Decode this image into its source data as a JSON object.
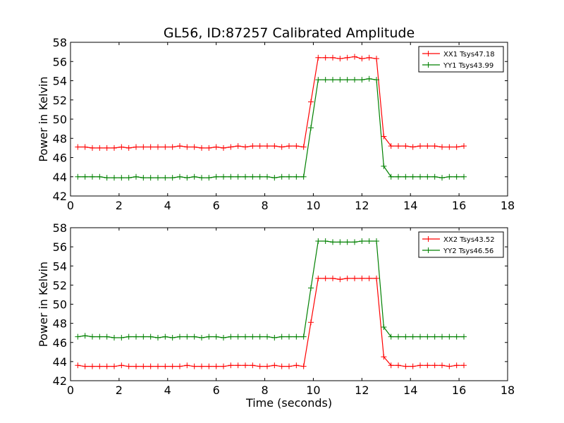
{
  "title": "GL56, ID:87257 Calibrated Amplitude",
  "chart_data": [
    {
      "type": "line",
      "title": "GL56, ID:87257 Calibrated Amplitude",
      "xlabel": "",
      "ylabel": "Power in Kelvin",
      "xlim": [
        0,
        18
      ],
      "ylim": [
        42,
        58
      ],
      "xticks": [
        "0",
        "2",
        "4",
        "6",
        "8",
        "10",
        "12",
        "14",
        "16",
        "18"
      ],
      "yticks": [
        "42",
        "44",
        "46",
        "48",
        "50",
        "52",
        "54",
        "56",
        "58"
      ],
      "grid": false,
      "legend_position": "top-right",
      "x": [
        0.3,
        0.6,
        0.9,
        1.2,
        1.5,
        1.8,
        2.1,
        2.4,
        2.7,
        3.0,
        3.3,
        3.6,
        3.9,
        4.2,
        4.5,
        4.8,
        5.1,
        5.4,
        5.7,
        6.0,
        6.3,
        6.6,
        6.9,
        7.2,
        7.5,
        7.8,
        8.1,
        8.4,
        8.7,
        9.0,
        9.3,
        9.6,
        9.9,
        10.2,
        10.5,
        10.8,
        11.1,
        11.4,
        11.7,
        12.0,
        12.3,
        12.6,
        12.9,
        13.2,
        13.5,
        13.8,
        14.1,
        14.4,
        14.7,
        15.0,
        15.3,
        15.6,
        15.9,
        16.2
      ],
      "series": [
        {
          "name": "XX1 Tsys47.18",
          "color": "#ff0000",
          "values": [
            47.1,
            47.1,
            47.0,
            47.0,
            47.0,
            47.0,
            47.1,
            47.0,
            47.1,
            47.1,
            47.1,
            47.1,
            47.1,
            47.1,
            47.2,
            47.1,
            47.1,
            47.0,
            47.0,
            47.1,
            47.0,
            47.1,
            47.2,
            47.1,
            47.2,
            47.2,
            47.2,
            47.2,
            47.1,
            47.2,
            47.2,
            47.1,
            51.8,
            56.4,
            56.4,
            56.4,
            56.3,
            56.4,
            56.5,
            56.3,
            56.4,
            56.3,
            48.2,
            47.2,
            47.2,
            47.2,
            47.1,
            47.2,
            47.2,
            47.2,
            47.1,
            47.1,
            47.1,
            47.2
          ]
        },
        {
          "name": "YY1 Tsys43.99",
          "color": "#008000",
          "values": [
            44.0,
            44.0,
            44.0,
            44.0,
            43.9,
            43.9,
            43.9,
            43.9,
            44.0,
            43.9,
            43.9,
            43.9,
            43.9,
            43.9,
            44.0,
            43.9,
            44.0,
            43.9,
            43.9,
            44.0,
            44.0,
            44.0,
            44.0,
            44.0,
            44.0,
            44.0,
            44.0,
            43.9,
            44.0,
            44.0,
            44.0,
            44.0,
            49.1,
            54.1,
            54.1,
            54.1,
            54.1,
            54.1,
            54.1,
            54.1,
            54.2,
            54.1,
            45.1,
            44.0,
            44.0,
            44.0,
            44.0,
            44.0,
            44.0,
            44.0,
            43.9,
            44.0,
            44.0,
            44.0
          ]
        }
      ]
    },
    {
      "type": "line",
      "title": "",
      "xlabel": "Time (seconds)",
      "ylabel": "Power in Kelvin",
      "xlim": [
        0,
        18
      ],
      "ylim": [
        42,
        58
      ],
      "xticks": [
        "0",
        "2",
        "4",
        "6",
        "8",
        "10",
        "12",
        "14",
        "16",
        "18"
      ],
      "yticks": [
        "42",
        "44",
        "46",
        "48",
        "50",
        "52",
        "54",
        "56",
        "58"
      ],
      "grid": false,
      "legend_position": "top-right",
      "x": [
        0.3,
        0.6,
        0.9,
        1.2,
        1.5,
        1.8,
        2.1,
        2.4,
        2.7,
        3.0,
        3.3,
        3.6,
        3.9,
        4.2,
        4.5,
        4.8,
        5.1,
        5.4,
        5.7,
        6.0,
        6.3,
        6.6,
        6.9,
        7.2,
        7.5,
        7.8,
        8.1,
        8.4,
        8.7,
        9.0,
        9.3,
        9.6,
        9.9,
        10.2,
        10.5,
        10.8,
        11.1,
        11.4,
        11.7,
        12.0,
        12.3,
        12.6,
        12.9,
        13.2,
        13.5,
        13.8,
        14.1,
        14.4,
        14.7,
        15.0,
        15.3,
        15.6,
        15.9,
        16.2
      ],
      "series": [
        {
          "name": "XX2 Tsys43.52",
          "color": "#ff0000",
          "values": [
            43.6,
            43.5,
            43.5,
            43.5,
            43.5,
            43.5,
            43.6,
            43.5,
            43.5,
            43.5,
            43.5,
            43.5,
            43.5,
            43.5,
            43.5,
            43.6,
            43.5,
            43.5,
            43.5,
            43.5,
            43.5,
            43.6,
            43.6,
            43.6,
            43.6,
            43.5,
            43.5,
            43.6,
            43.5,
            43.5,
            43.6,
            43.5,
            48.1,
            52.7,
            52.7,
            52.7,
            52.6,
            52.7,
            52.7,
            52.7,
            52.7,
            52.7,
            44.5,
            43.6,
            43.6,
            43.5,
            43.5,
            43.6,
            43.6,
            43.6,
            43.6,
            43.5,
            43.6,
            43.6
          ]
        },
        {
          "name": "YY2 Tsys46.56",
          "color": "#008000",
          "values": [
            46.6,
            46.7,
            46.6,
            46.6,
            46.6,
            46.5,
            46.5,
            46.6,
            46.6,
            46.6,
            46.6,
            46.5,
            46.6,
            46.5,
            46.6,
            46.6,
            46.6,
            46.5,
            46.6,
            46.6,
            46.5,
            46.6,
            46.6,
            46.6,
            46.6,
            46.6,
            46.6,
            46.5,
            46.6,
            46.6,
            46.6,
            46.6,
            51.7,
            56.6,
            56.6,
            56.5,
            56.5,
            56.5,
            56.5,
            56.6,
            56.6,
            56.6,
            47.6,
            46.6,
            46.6,
            46.6,
            46.6,
            46.6,
            46.6,
            46.6,
            46.6,
            46.6,
            46.6,
            46.6
          ]
        }
      ]
    }
  ]
}
